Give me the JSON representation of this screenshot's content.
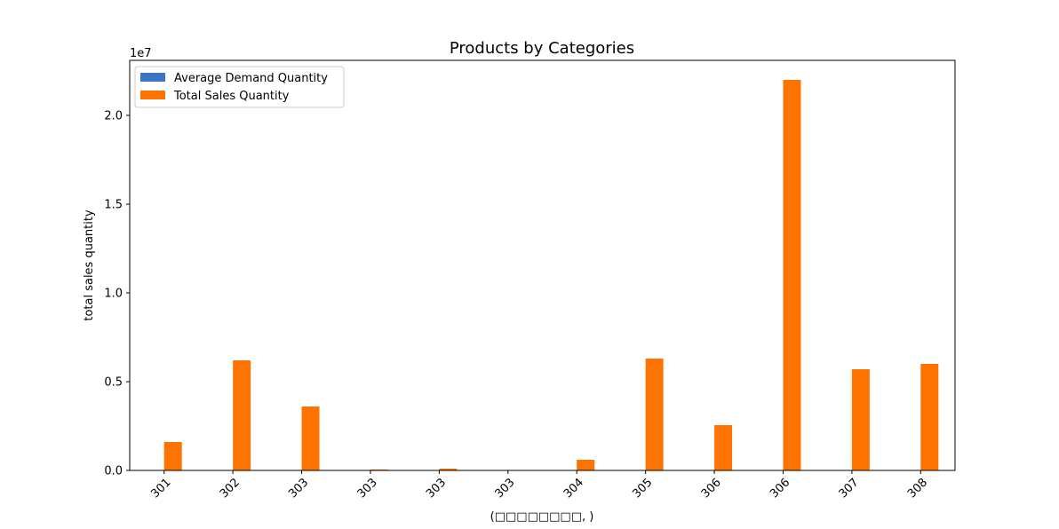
{
  "chart_data": {
    "type": "bar",
    "title": "Products by Categories",
    "xlabel": "(□□□□□□□□, )",
    "ylabel": "total sales quantity",
    "y_offset_label": "1e7",
    "categories": [
      "301",
      "302",
      "303",
      "303",
      "303",
      "303",
      "304",
      "305",
      "306",
      "306",
      "307",
      "308"
    ],
    "series": [
      {
        "name": "Average Demand Quantity",
        "color": "#3a76c4",
        "values": [
          5,
          6,
          5,
          4,
          4,
          3,
          5,
          6,
          5,
          6,
          5,
          6
        ]
      },
      {
        "name": "Total Sales Quantity",
        "color": "#ff7300",
        "values": [
          1600000,
          6200000,
          3600000,
          50000,
          100000,
          10000,
          600000,
          6300000,
          2550000,
          22000000,
          5700000,
          6000000
        ]
      }
    ],
    "ylim": [
      0,
      23100000
    ],
    "yticks": [
      0,
      5000000,
      10000000,
      15000000,
      20000000
    ],
    "ytick_labels": [
      "0.0",
      "0.5",
      "1.0",
      "1.5",
      "2.0"
    ],
    "legend_position": "top-left",
    "grid": false
  }
}
